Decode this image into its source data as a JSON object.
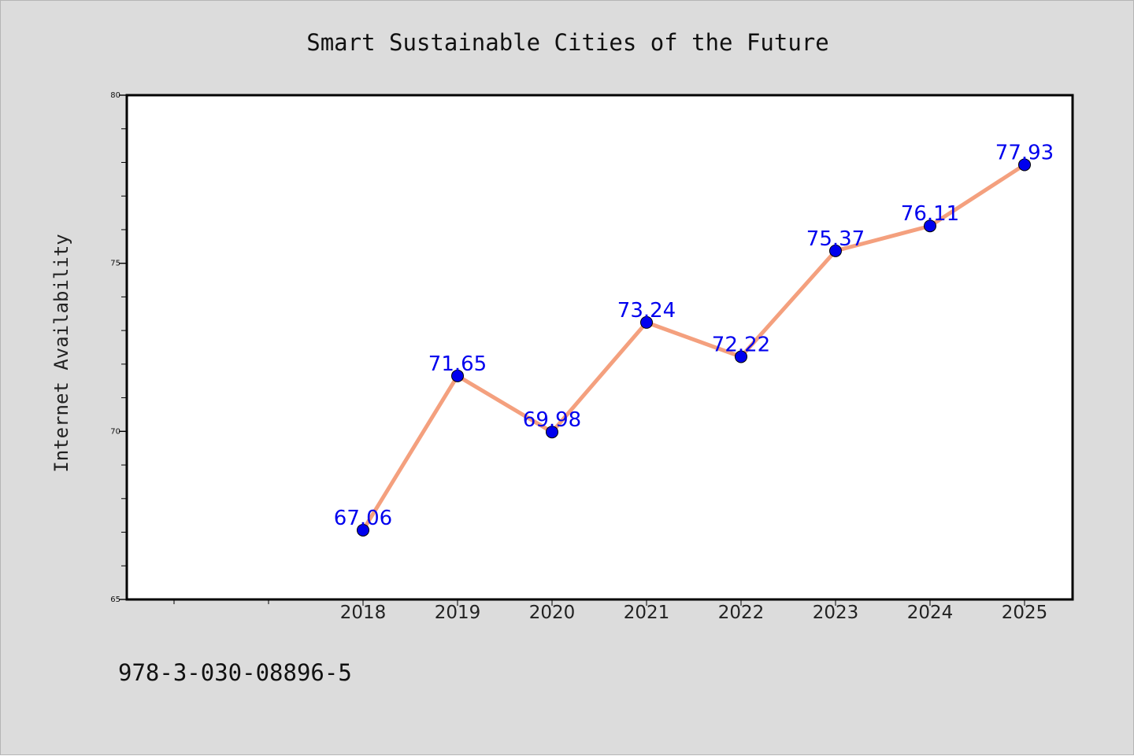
{
  "chart_data": {
    "type": "line",
    "title": "Smart Sustainable Cities of the Future",
    "xlabel": "",
    "ylabel": "Internet Availability",
    "categories": [
      "2018",
      "2019",
      "2020",
      "2021",
      "2022",
      "2023",
      "2024",
      "2025"
    ],
    "series": [
      {
        "values": [
          67.06,
          71.65,
          69.98,
          73.24,
          72.22,
          75.37,
          76.11,
          77.93
        ],
        "labels": [
          "67.06",
          "71.65",
          "69.98",
          "73.24",
          "72.22",
          "75.37",
          "76.11",
          "77.93"
        ]
      }
    ],
    "ylim": [
      65,
      80
    ],
    "yticks": [
      65,
      70,
      75,
      80
    ],
    "ytick_labels": [
      "65",
      "70",
      "75",
      "80"
    ],
    "grid": false,
    "legend": "none",
    "colors": {
      "line": "#f4a07e",
      "marker": "#0000ee",
      "data_label": "#0000ee",
      "plot_background": "#ffffff",
      "figure_background": "#dcdcdc"
    }
  },
  "footer": {
    "isbn": "978-3-030-08896-5"
  }
}
